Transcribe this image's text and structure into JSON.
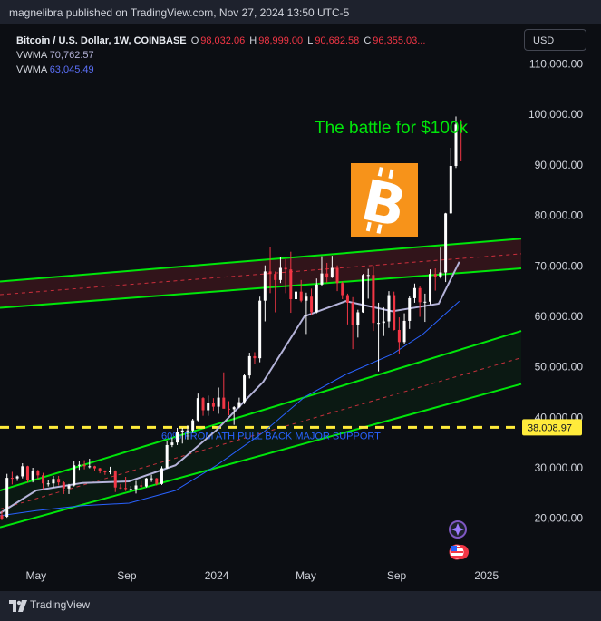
{
  "publisher": "magnelibra published on TradingView.com, Nov 27, 2024 13:50 UTC-5",
  "brand": "TradingView",
  "legend": {
    "symbol": "Bitcoin / U.S. Dollar, 1W, COINBASE",
    "o_label": "O",
    "o_value": "98,032.06",
    "h_label": "H",
    "h_value": "98,999.00",
    "l_label": "L",
    "l_value": "90,682.58",
    "c_label": "C",
    "c_value": "96,355.03...",
    "vwma1_label": "VWMA",
    "vwma1_value": "70,762.57",
    "vwma2_label": "VWMA",
    "vwma2_value": "63,045.49"
  },
  "currency": "USD",
  "colors": {
    "up": "#ffffff",
    "down": "#f23645",
    "channel": "#00e60a",
    "support": "#ffeb3b",
    "vwma1": "#b4b3d9",
    "vwma2": "#2962ff",
    "annotation": "#00e60a"
  },
  "icons": [
    "bitcoin-logo-icon",
    "assistant-sparkle-icon",
    "us-flag-event-icon",
    "tradingview-logo-icon"
  ],
  "chart_data": {
    "type": "candlestick",
    "title": "The battle for $100k",
    "support_label": "60% FROM ATH PULL BACK MAJOR SUPPORT",
    "support_value": 38008.97,
    "support_value_label": "38,008.97",
    "y_ticks": [
      20000,
      30000,
      40000,
      50000,
      60000,
      70000,
      80000,
      90000,
      100000,
      110000
    ],
    "y_tick_labels": [
      "20,000.00",
      "30,000.00",
      "40,000.00",
      "50,000.00",
      "60,000.00",
      "70,000.00",
      "80,000.00",
      "90,000.00",
      "100,000.00",
      "110,000.00"
    ],
    "ylim": [
      11500,
      118000
    ],
    "x_ticks": [
      "May",
      "Sep",
      "2024",
      "May",
      "Sep",
      "2025"
    ],
    "x_tick_dates": [
      "2023-05-01",
      "2023-09-01",
      "2024-01-01",
      "2024-05-01",
      "2024-09-01",
      "2025-01-01"
    ],
    "x_start": "2023-03-13",
    "x_end": "2025-02-17",
    "candles": [
      [
        "2023-03-13",
        20600,
        21400,
        19600,
        19800
      ],
      [
        "2023-03-20",
        20300,
        28800,
        20100,
        28000
      ],
      [
        "2023-03-27",
        28000,
        29200,
        26700,
        27900
      ],
      [
        "2023-04-03",
        27900,
        28500,
        27400,
        28300
      ],
      [
        "2023-04-10",
        28300,
        30900,
        27900,
        30300
      ],
      [
        "2023-04-17",
        30300,
        30400,
        27100,
        27600
      ],
      [
        "2023-04-24",
        27600,
        30000,
        27100,
        29300
      ],
      [
        "2023-05-01",
        29300,
        29600,
        27800,
        28500
      ],
      [
        "2023-05-08",
        28500,
        29000,
        25800,
        26900
      ],
      [
        "2023-05-15",
        26900,
        27600,
        26300,
        26900
      ],
      [
        "2023-05-22",
        26900,
        28400,
        26100,
        27800
      ],
      [
        "2023-05-29",
        27800,
        28400,
        26500,
        27100
      ],
      [
        "2023-06-05",
        27100,
        27300,
        24800,
        25900
      ],
      [
        "2023-06-12",
        25900,
        26800,
        24800,
        26500
      ],
      [
        "2023-06-19",
        26500,
        31400,
        26300,
        30500
      ],
      [
        "2023-06-26",
        30500,
        31300,
        29600,
        30600
      ],
      [
        "2023-07-03",
        30600,
        31500,
        29700,
        30300
      ],
      [
        "2023-07-10",
        30300,
        31800,
        29900,
        30300
      ],
      [
        "2023-07-17",
        30300,
        30400,
        29400,
        29900
      ],
      [
        "2023-07-24",
        29900,
        30000,
        28900,
        29300
      ],
      [
        "2023-07-31",
        29300,
        29500,
        28600,
        29100
      ],
      [
        "2023-08-07",
        29100,
        30200,
        28700,
        29400
      ],
      [
        "2023-08-14",
        29400,
        29500,
        25200,
        26100
      ],
      [
        "2023-08-21",
        26100,
        26800,
        25800,
        26000
      ],
      [
        "2023-08-28",
        26000,
        28200,
        25400,
        25800
      ],
      [
        "2023-09-04",
        25800,
        26400,
        25400,
        25800
      ],
      [
        "2023-09-11",
        25800,
        27400,
        24900,
        26500
      ],
      [
        "2023-09-18",
        26500,
        27400,
        26000,
        26300
      ],
      [
        "2023-09-25",
        26300,
        28000,
        26100,
        27900
      ],
      [
        "2023-10-02",
        27900,
        28600,
        27200,
        27900
      ],
      [
        "2023-10-09",
        27900,
        28000,
        26500,
        26800
      ],
      [
        "2023-10-16",
        26800,
        30300,
        26600,
        29900
      ],
      [
        "2023-10-23",
        29900,
        35200,
        29800,
        34500
      ],
      [
        "2023-10-30",
        34500,
        35900,
        34100,
        35000
      ],
      [
        "2023-11-06",
        35000,
        37900,
        34500,
        37100
      ],
      [
        "2023-11-13",
        37100,
        37900,
        34800,
        37400
      ],
      [
        "2023-11-20",
        37400,
        38400,
        35600,
        37400
      ],
      [
        "2023-11-27",
        37400,
        39700,
        36900,
        39400
      ],
      [
        "2023-12-04",
        39400,
        44700,
        39200,
        43800
      ],
      [
        "2023-12-11",
        43800,
        44000,
        40300,
        41400
      ],
      [
        "2023-12-18",
        41400,
        44300,
        40300,
        42800
      ],
      [
        "2023-12-25",
        42800,
        43800,
        41300,
        42100
      ],
      [
        "2024-01-01",
        42100,
        45900,
        40700,
        43900
      ],
      [
        "2024-01-08",
        43900,
        48900,
        41800,
        41700
      ],
      [
        "2024-01-15",
        41700,
        43200,
        40400,
        41600
      ],
      [
        "2024-01-22",
        41600,
        42200,
        38500,
        42000
      ],
      [
        "2024-01-29",
        42000,
        43900,
        41800,
        43000
      ],
      [
        "2024-02-05",
        43000,
        48600,
        42600,
        48300
      ],
      [
        "2024-02-12",
        48300,
        52800,
        47700,
        52100
      ],
      [
        "2024-02-19",
        52100,
        52900,
        50600,
        51700
      ],
      [
        "2024-02-26",
        51700,
        63900,
        50900,
        63100
      ],
      [
        "2024-03-04",
        63100,
        70100,
        59000,
        68900
      ],
      [
        "2024-03-11",
        68900,
        73800,
        64600,
        68400
      ],
      [
        "2024-03-18",
        68400,
        68900,
        60800,
        67200
      ],
      [
        "2024-03-25",
        67200,
        71700,
        66600,
        69600
      ],
      [
        "2024-04-01",
        69600,
        71300,
        64600,
        69300
      ],
      [
        "2024-04-08",
        69300,
        72800,
        60700,
        63400
      ],
      [
        "2024-04-15",
        63400,
        66000,
        59600,
        64900
      ],
      [
        "2024-04-22",
        64900,
        67200,
        62800,
        63100
      ],
      [
        "2024-04-29",
        63100,
        64700,
        56500,
        63900
      ],
      [
        "2024-05-06",
        63900,
        65500,
        60200,
        60800
      ],
      [
        "2024-05-13",
        60800,
        67500,
        60600,
        66300
      ],
      [
        "2024-05-20",
        66300,
        71900,
        66100,
        68500
      ],
      [
        "2024-05-27",
        68500,
        70600,
        66700,
        67700
      ],
      [
        "2024-06-03",
        67700,
        72000,
        67600,
        69600
      ],
      [
        "2024-06-10",
        69600,
        70100,
        65000,
        66600
      ],
      [
        "2024-06-17",
        66600,
        66900,
        63400,
        64200
      ],
      [
        "2024-06-24",
        64200,
        64500,
        58400,
        62700
      ],
      [
        "2024-07-01",
        62700,
        63800,
        53500,
        58200
      ],
      [
        "2024-07-08",
        58200,
        61300,
        55800,
        60800
      ],
      [
        "2024-07-15",
        60800,
        68400,
        60700,
        68200
      ],
      [
        "2024-07-22",
        68200,
        69400,
        63500,
        68200
      ],
      [
        "2024-07-29",
        68200,
        70000,
        57100,
        58700
      ],
      [
        "2024-08-05",
        58700,
        62700,
        49100,
        58700
      ],
      [
        "2024-08-12",
        58700,
        61800,
        56100,
        59000
      ],
      [
        "2024-08-19",
        59000,
        65000,
        57700,
        64200
      ],
      [
        "2024-08-26",
        64200,
        64900,
        57200,
        57300
      ],
      [
        "2024-09-02",
        57300,
        59800,
        52600,
        54900
      ],
      [
        "2024-09-09",
        54900,
        60600,
        54600,
        59100
      ],
      [
        "2024-09-16",
        59100,
        64100,
        57500,
        63600
      ],
      [
        "2024-09-23",
        63600,
        66500,
        62700,
        65600
      ],
      [
        "2024-09-30",
        65600,
        66000,
        59900,
        62800
      ],
      [
        "2024-10-07",
        62800,
        64500,
        58900,
        62900
      ],
      [
        "2024-10-14",
        62900,
        69300,
        62400,
        68400
      ],
      [
        "2024-10-21",
        68400,
        69500,
        65100,
        67900
      ],
      [
        "2024-10-28",
        67900,
        73600,
        67500,
        68700
      ],
      [
        "2024-11-04",
        68700,
        80500,
        66800,
        80400
      ],
      [
        "2024-11-11",
        80400,
        93400,
        80300,
        89800
      ],
      [
        "2024-11-18",
        89800,
        99600,
        89400,
        98000
      ],
      [
        "2024-11-25",
        98000,
        99000,
        90700,
        96400
      ]
    ],
    "series": [
      {
        "name": "VWMA",
        "value_label": "70,762.57",
        "dates": [
          "2023-03-13",
          "2023-05-01",
          "2023-07-03",
          "2023-09-04",
          "2023-11-06",
          "2024-01-01",
          "2024-03-04",
          "2024-04-29",
          "2024-06-24",
          "2024-08-26",
          "2024-10-07",
          "2024-10-28",
          "2024-11-25"
        ],
        "values": [
          21000,
          25500,
          27000,
          27300,
          30500,
          37500,
          47000,
          60000,
          63000,
          61000,
          62000,
          62500,
          70800
        ]
      },
      {
        "name": "VWMA",
        "value_label": "63,045.49",
        "dates": [
          "2023-03-13",
          "2023-05-01",
          "2023-07-03",
          "2023-09-04",
          "2023-11-06",
          "2024-01-01",
          "2024-03-04",
          "2024-04-29",
          "2024-06-24",
          "2024-08-26",
          "2024-10-07",
          "2024-11-25"
        ],
        "values": [
          20500,
          21500,
          22500,
          23000,
          25500,
          30500,
          37000,
          44000,
          48500,
          52500,
          56500,
          63000
        ]
      }
    ],
    "bands": [
      {
        "name": "upper",
        "x": [
          "2023-03-13",
          "2025-02-17"
        ],
        "top": [
          66900,
          75400
        ],
        "mid": [
          64300,
          72400
        ],
        "bottom": [
          61700,
          69500
        ]
      },
      {
        "name": "lower",
        "x": [
          "2023-03-13",
          "2025-02-17"
        ],
        "top": [
          25500,
          57100
        ],
        "mid": [
          21800,
          51800
        ],
        "bottom": [
          18200,
          46600
        ]
      }
    ]
  }
}
